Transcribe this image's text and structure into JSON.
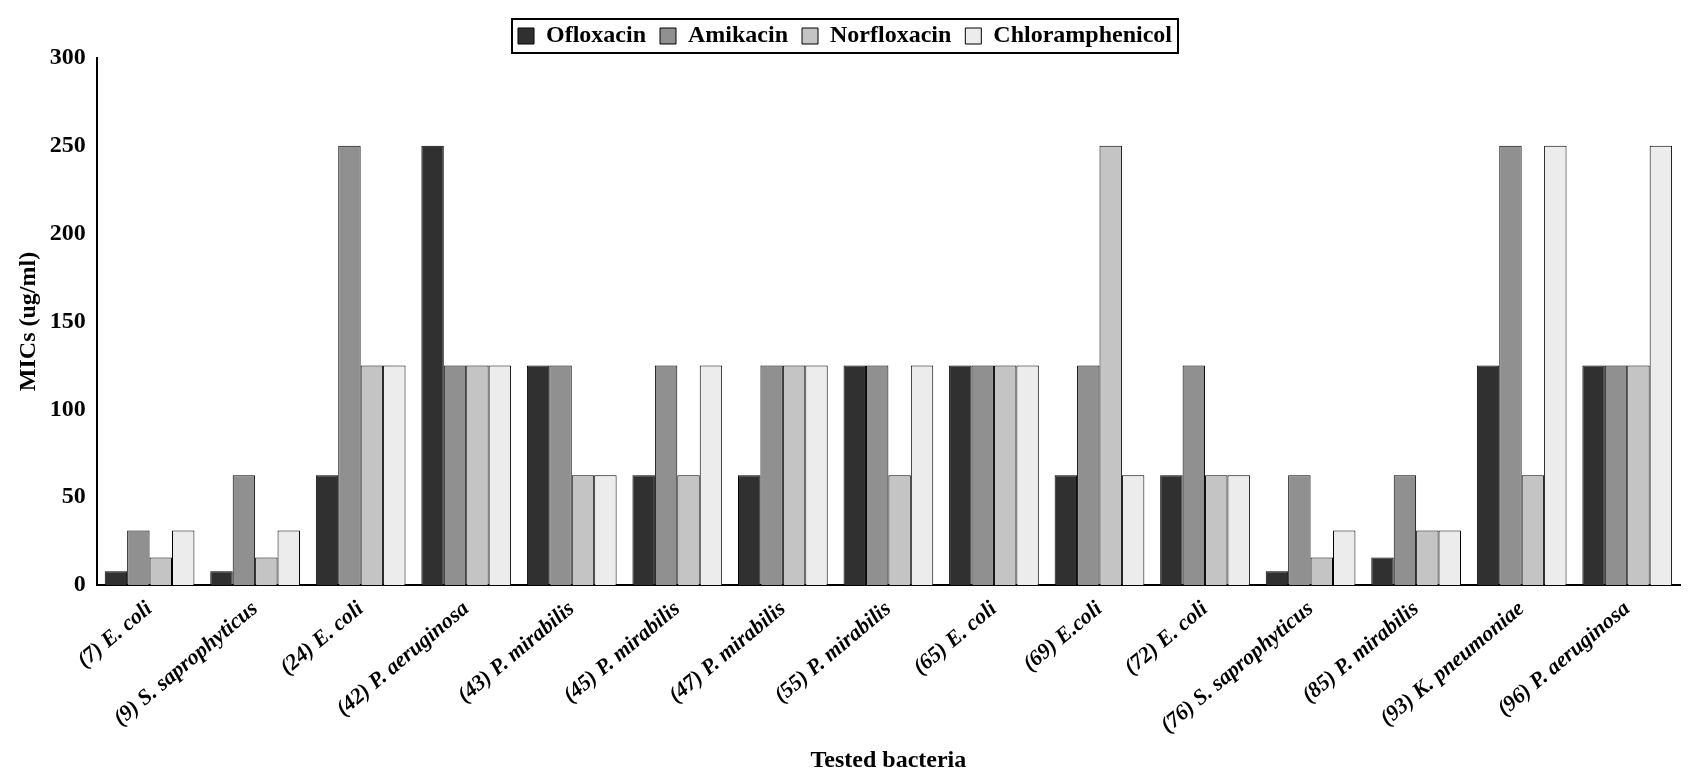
{
  "chart_data": {
    "type": "bar",
    "xlabel": "Tested bacteria",
    "ylabel": "MICs (ug/ml)",
    "categories": [
      "(7) E. coli",
      "(9) S. saprophyticus",
      "(24) E. coli",
      "(42) P. aeruginosa",
      "(43) P. mirabilis",
      "(45) P. mirabilis",
      "(47) P. mirabilis",
      "(55) P. mirabilis",
      "(65) E. coli",
      "(69) E.coli",
      "(72) E. coli",
      "(76) S. saprophyticus",
      "(85) P. mirabilis",
      "(93) K. pneumoniae",
      "(96) P. aeruginosa"
    ],
    "series": [
      {
        "name": "Ofloxacin",
        "color": "#303030",
        "values": [
          7.8,
          7.8,
          62.5,
          250,
          125,
          62.5,
          62.5,
          125,
          125,
          62.5,
          62.5,
          7.8,
          15.6,
          125,
          125
        ]
      },
      {
        "name": "Amikacin",
        "color": "#909090",
        "values": [
          31,
          62.5,
          250,
          125,
          125,
          125,
          125,
          125,
          125,
          125,
          125,
          62.5,
          62.5,
          250,
          125
        ]
      },
      {
        "name": "Norfloxacin",
        "color": "#c4c4c4",
        "values": [
          15.6,
          15.6,
          125,
          125,
          62.5,
          62.5,
          125,
          62.5,
          125,
          250,
          62.5,
          15.6,
          31,
          62.5,
          125
        ]
      },
      {
        "name": "Chloramphenicol",
        "color": "#ececec",
        "values": [
          31,
          31,
          125,
          125,
          62.5,
          125,
          125,
          125,
          125,
          62.5,
          62.5,
          31,
          31,
          250,
          250
        ]
      }
    ],
    "ylim": [
      0,
      300
    ],
    "yticks": [
      0,
      50,
      100,
      150,
      200,
      250,
      300
    ],
    "grid": false,
    "legend": "top"
  }
}
